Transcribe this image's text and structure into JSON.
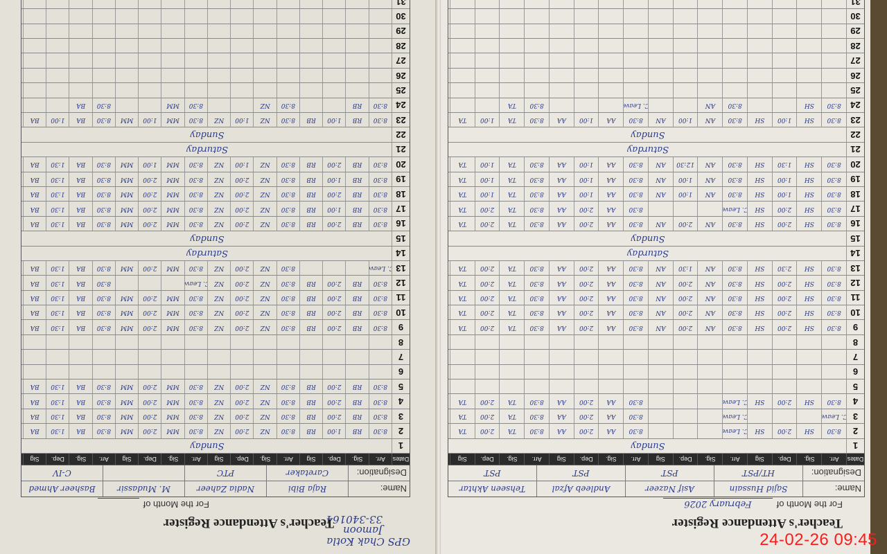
{
  "left_page": {
    "school_note": [
      "GPS Chak Kotla",
      "Jamoon",
      "33-340164"
    ],
    "title": "Teacher's Attendance Register",
    "month_label": "For the Month of",
    "month_value": "",
    "name_label": "Name:",
    "designation_label": "Designation:",
    "teachers": [
      {
        "name": "Raja Bibi",
        "designation": "Caretaker",
        "sig": "RB"
      },
      {
        "name": "Nadia Zaheer",
        "designation": "PTC",
        "sig": "NZ"
      },
      {
        "name": "M. Mudassir",
        "designation": "",
        "sig": "MM"
      },
      {
        "name": "Basheer Ahmed",
        "designation": "C-IV",
        "sig": "BA"
      }
    ],
    "column_headers": [
      "Dates",
      "Arr.",
      "Sig.",
      "Dep.",
      "Sig"
    ],
    "rows": [
      {
        "date": "1",
        "note": "Sunday"
      },
      {
        "date": "2",
        "times": [
          "8:30",
          "1:00",
          "8:30",
          "2:00",
          "8:30",
          "2:00",
          "8:30",
          "1:30"
        ]
      },
      {
        "date": "3",
        "times": [
          "8:30",
          "2:00",
          "8:30",
          "2:00",
          "8:30",
          "2:00",
          "8:30",
          "1:30"
        ]
      },
      {
        "date": "4",
        "times": [
          "8:30",
          "2:00",
          "8:30",
          "2:00",
          "8:30",
          "2:00",
          "8:30",
          "1:30"
        ]
      },
      {
        "date": "5",
        "times": [
          "8:30",
          "2:00",
          "8:30",
          "2:00",
          "8:30",
          "2:00",
          "8:30",
          "1:30"
        ]
      },
      {
        "date": "6"
      },
      {
        "date": "7"
      },
      {
        "date": "8"
      },
      {
        "date": "9",
        "times": [
          "8:30",
          "2:00",
          "8:30",
          "2:00",
          "8:30",
          "2:00",
          "8:30",
          "1:30"
        ]
      },
      {
        "date": "10",
        "times": [
          "8:30",
          "2:00",
          "8:30",
          "2:00",
          "8:30",
          "2:00",
          "8:30",
          "1:30"
        ]
      },
      {
        "date": "11",
        "times": [
          "8:30",
          "2:00",
          "8:30",
          "2:00",
          "8:30",
          "2:00",
          "8:30",
          "1:30"
        ]
      },
      {
        "date": "12",
        "times": [
          "8:30",
          "2:00",
          "8:30",
          "2:00",
          "C. Leave",
          "",
          "8:30",
          "1:30"
        ]
      },
      {
        "date": "13",
        "times": [
          "C. Leave",
          "",
          "8:30",
          "2:00",
          "8:30",
          "2:00",
          "8:30",
          "1:30"
        ]
      },
      {
        "date": "14",
        "note": "Saturday"
      },
      {
        "date": "15",
        "note": "Sunday"
      },
      {
        "date": "16",
        "times": [
          "8:30",
          "2:00",
          "8:30",
          "2:00",
          "8:30",
          "2:00",
          "8:30",
          "1:30"
        ]
      },
      {
        "date": "17",
        "times": [
          "8:30",
          "1:00",
          "8:30",
          "2:00",
          "8:30",
          "2:00",
          "8:30",
          "1:30"
        ]
      },
      {
        "date": "18",
        "times": [
          "8:30",
          "2:00",
          "8:30",
          "2:00",
          "8:30",
          "2:00",
          "8:30",
          "1:30"
        ]
      },
      {
        "date": "19",
        "times": [
          "8:30",
          "1:00",
          "8:30",
          "2:00",
          "8:30",
          "2:00",
          "8:30",
          "1:30"
        ]
      },
      {
        "date": "20",
        "times": [
          "8:30",
          "2:00",
          "8:30",
          "1:00",
          "8:30",
          "1:00",
          "8:30",
          "1:30"
        ]
      },
      {
        "date": "21",
        "note": "Saturday"
      },
      {
        "date": "22",
        "note": "Sunday"
      },
      {
        "date": "23",
        "times": [
          "8:30",
          "1:00",
          "8:30",
          "1:00",
          "8:30",
          "1:00",
          "8:30",
          "1:00"
        ]
      },
      {
        "date": "24",
        "times": [
          "8:30",
          "",
          "8:30",
          "",
          "8:30",
          "",
          "8:30",
          ""
        ]
      },
      {
        "date": "25"
      },
      {
        "date": "26"
      },
      {
        "date": "27"
      },
      {
        "date": "28"
      },
      {
        "date": "29"
      },
      {
        "date": "30"
      },
      {
        "date": "31"
      }
    ]
  },
  "right_page": {
    "title": "Teacher's Attendance Register",
    "month_label": "For the Month of",
    "month_value": "February 2026",
    "name_label": "Name:",
    "designation_label": "Designation:",
    "teachers": [
      {
        "name": "Sajid Hussain",
        "designation": "HT/PST",
        "sig": "SH"
      },
      {
        "name": "Asif Nazeer",
        "designation": "PST",
        "sig": "AN"
      },
      {
        "name": "Andleeb Afzal",
        "designation": "PST",
        "sig": "AA"
      },
      {
        "name": "Tehseen Akhtar",
        "designation": "PST",
        "sig": "TA"
      }
    ],
    "column_headers": [
      "Dates",
      "Arr.",
      "Sig.",
      "Dep.",
      "Sig"
    ],
    "rows": [
      {
        "date": "1",
        "note": "Sunday"
      },
      {
        "date": "2",
        "times": [
          "8:30",
          "2:00",
          "C. Leave",
          "",
          "8:30",
          "2:00",
          "8:30",
          "2:00"
        ]
      },
      {
        "date": "3",
        "times": [
          "C. Leave",
          "",
          "C. Leave",
          "",
          "8:30",
          "2:00",
          "8:30",
          "2:00"
        ]
      },
      {
        "date": "4",
        "times": [
          "8:30",
          "2:00",
          "C. Leave",
          "",
          "8:30",
          "2:00",
          "8:30",
          "2:00"
        ]
      },
      {
        "date": "5"
      },
      {
        "date": "6"
      },
      {
        "date": "7"
      },
      {
        "date": "8"
      },
      {
        "date": "9",
        "times": [
          "8:30",
          "2:00",
          "8:30",
          "2:00",
          "8:30",
          "2:00",
          "8:30",
          "2:00"
        ]
      },
      {
        "date": "10",
        "times": [
          "8:30",
          "2:00",
          "8:30",
          "2:00",
          "8:30",
          "2:00",
          "8:30",
          "2:00"
        ]
      },
      {
        "date": "11",
        "times": [
          "8:30",
          "2:00",
          "8:30",
          "2:00",
          "8:30",
          "2:00",
          "8:30",
          "2:00"
        ]
      },
      {
        "date": "12",
        "times": [
          "8:30",
          "2:00",
          "8:30",
          "2:00",
          "8:30",
          "2:00",
          "8:30",
          "2:00"
        ]
      },
      {
        "date": "13",
        "times": [
          "8:30",
          "2:30",
          "8:30",
          "1:30",
          "8:30",
          "2:00",
          "8:30",
          "2:00"
        ]
      },
      {
        "date": "14",
        "note": "Saturday"
      },
      {
        "date": "15",
        "note": "Sunday"
      },
      {
        "date": "16",
        "times": [
          "8:30",
          "2:00",
          "8:30",
          "2:00",
          "8:30",
          "2:00",
          "8:30",
          "2:00"
        ]
      },
      {
        "date": "17",
        "times": [
          "8:30",
          "2:00",
          "C. Leave",
          "",
          "8:30",
          "2:00",
          "8:30",
          "2:00"
        ]
      },
      {
        "date": "18",
        "times": [
          "8:30",
          "1:00",
          "8:30",
          "1:00",
          "8:30",
          "1:00",
          "8:30",
          "1:00"
        ]
      },
      {
        "date": "19",
        "times": [
          "8:30",
          "1:00",
          "8:30",
          "1:00",
          "8:30",
          "1:00",
          "8:30",
          "1:00"
        ]
      },
      {
        "date": "20",
        "times": [
          "8:30",
          "1:30",
          "8:30",
          "12:30",
          "8:30",
          "1:00",
          "8:30",
          "1:00"
        ]
      },
      {
        "date": "21",
        "note": "Saturday"
      },
      {
        "date": "22",
        "note": "Sunday"
      },
      {
        "date": "23",
        "times": [
          "8:30",
          "1:00",
          "8:30",
          "1:00",
          "8:30",
          "1:00",
          "8:30",
          "1:00"
        ]
      },
      {
        "date": "24",
        "times": [
          "8:30",
          "",
          "8:30",
          "",
          "C. Leave",
          "",
          "8:30",
          ""
        ]
      },
      {
        "date": "25"
      },
      {
        "date": "26"
      },
      {
        "date": "27"
      },
      {
        "date": "28"
      },
      {
        "date": "29"
      },
      {
        "date": "30"
      },
      {
        "date": "31"
      }
    ]
  },
  "timestamp": "24-02-26  09:45",
  "colors": {
    "ink": "#2a3a8a",
    "timestamp": "#ff1a1a",
    "header_bar": "#2b2b2b"
  }
}
